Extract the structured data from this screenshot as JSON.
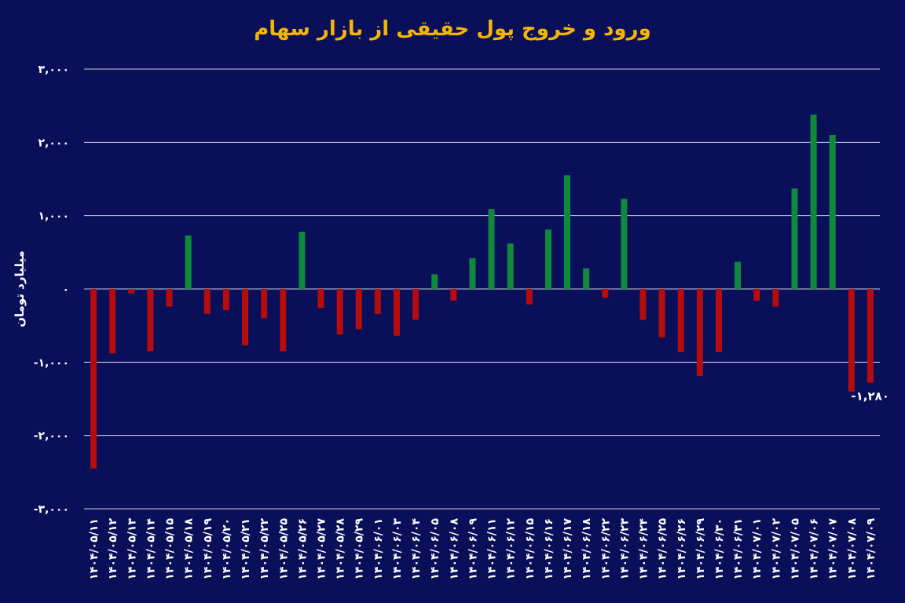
{
  "chart_data": {
    "type": "bar",
    "title": "ورود و خروج پول حقیقی از بازار سهام",
    "ylabel": "میلیارد تومان",
    "xlabel": "",
    "ylim": [
      -3000,
      3000
    ],
    "yticks": [
      3000,
      2000,
      1000,
      0,
      -1000,
      -2000,
      -3000
    ],
    "ytick_labels": [
      "۳,۰۰۰",
      "۲,۰۰۰",
      "۱,۰۰۰",
      "۰",
      "-۱,۰۰۰",
      "-۲,۰۰۰",
      "-۳,۰۰۰"
    ],
    "grid": true,
    "positive_color": "#0f8a3c",
    "negative_color": "#b50d0d",
    "categories": [
      "۱۴۰۴/۰۵/۱۱",
      "۱۴۰۴/۰۵/۱۲",
      "۱۴۰۴/۰۵/۱۳",
      "۱۴۰۴/۰۵/۱۴",
      "۱۴۰۴/۰۵/۱۵",
      "۱۴۰۴/۰۵/۱۸",
      "۱۴۰۴/۰۵/۱۹",
      "۱۴۰۴/۰۵/۲۰",
      "۱۴۰۴/۰۵/۲۱",
      "۱۴۰۴/۰۵/۲۲",
      "۱۴۰۴/۰۵/۲۵",
      "۱۴۰۴/۰۵/۲۶",
      "۱۴۰۴/۰۵/۲۷",
      "۱۴۰۴/۰۵/۲۸",
      "۱۴۰۴/۰۵/۲۹",
      "۱۴۰۴/۰۶/۰۱",
      "۱۴۰۴/۰۶/۰۳",
      "۱۴۰۴/۰۶/۰۴",
      "۱۴۰۴/۰۶/۰۵",
      "۱۴۰۴/۰۶/۰۸",
      "۱۴۰۴/۰۶/۰۹",
      "۱۴۰۴/۰۶/۱۱",
      "۱۴۰۴/۰۶/۱۲",
      "۱۴۰۴/۰۶/۱۵",
      "۱۴۰۴/۰۶/۱۶",
      "۱۴۰۴/۰۶/۱۷",
      "۱۴۰۴/۰۶/۱۸",
      "۱۴۰۴/۰۶/۲۲",
      "۱۴۰۴/۰۶/۲۳",
      "۱۴۰۴/۰۶/۲۴",
      "۱۴۰۴/۰۶/۲۵",
      "۱۴۰۴/۰۶/۲۶",
      "۱۴۰۴/۰۶/۲۹",
      "۱۴۰۴/۰۶/۳۰",
      "۱۴۰۴/۰۶/۳۱",
      "۱۴۰۴/۰۷/۰۱",
      "۱۴۰۴/۰۷/۰۲",
      "۱۴۰۴/۰۷/۰۵",
      "۱۴۰۴/۰۷/۰۶",
      "۱۴۰۴/۰۷/۰۷",
      "۱۴۰۴/۰۷/۰۸",
      "۱۴۰۴/۰۷/۰۹"
    ],
    "values": [
      -2450,
      -880,
      -60,
      -850,
      -240,
      730,
      -340,
      -290,
      -770,
      -400,
      -850,
      780,
      -260,
      -620,
      -550,
      -340,
      -640,
      -420,
      200,
      -160,
      420,
      1090,
      620,
      -210,
      810,
      1550,
      280,
      -120,
      1230,
      -420,
      -660,
      -860,
      -1190,
      -860,
      370,
      -160,
      -240,
      1370,
      2380,
      2100,
      -1400,
      -1280
    ],
    "data_labels": [
      {
        "index": 41,
        "text": "-۱,۲۸۰"
      }
    ]
  }
}
